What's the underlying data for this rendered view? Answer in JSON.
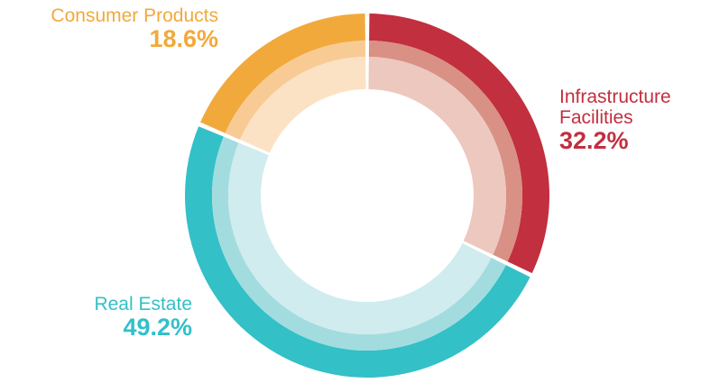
{
  "chart_data": {
    "type": "pie",
    "variant": "donut-concentric-rings",
    "categories": [
      "Infrastructure Facilities",
      "Real Estate",
      "Consumer Products"
    ],
    "values": [
      32.2,
      49.2,
      18.6
    ],
    "value_labels": [
      "32.2%",
      "49.2%",
      "18.6%"
    ],
    "label_lines": [
      [
        "Infrastructure",
        "Facilities"
      ],
      [
        "Real Estate"
      ],
      [
        "Consumer Products"
      ]
    ],
    "colors": [
      "#c22f3f",
      "#33c0c7",
      "#f2a93b"
    ],
    "ring_colors": [
      [
        "#c22f3f",
        "#d99085",
        "#edc8be"
      ],
      [
        "#33c0c7",
        "#a3dcdf",
        "#d0ecee"
      ],
      [
        "#f2a93b",
        "#f8cb94",
        "#fce2c4"
      ]
    ],
    "start_angle_deg": 0,
    "direction": "clockwise",
    "legend": "none"
  }
}
